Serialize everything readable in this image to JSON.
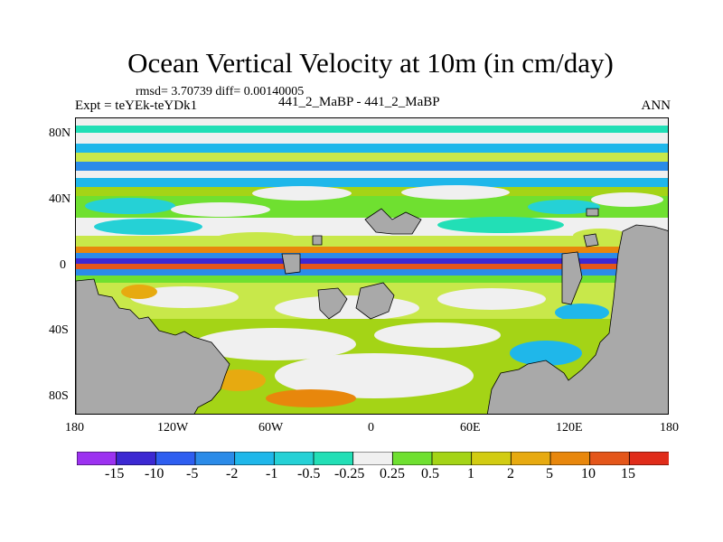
{
  "title": "Ocean Vertical Velocity at 10m (in cm/day)",
  "stats": "rmsd= 3.70739 diff= 0.00140005",
  "experiment": "Expt = teYEk-teYDk1",
  "case_label": "441_2_MaBP - 441_2_MaBP",
  "season": "ANN",
  "y_axis_labels": [
    "80N",
    "40N",
    "0",
    "40S",
    "80S"
  ],
  "x_axis_labels": [
    "180",
    "120W",
    "60W",
    "0",
    "60E",
    "120E",
    "180"
  ],
  "colorbar_labels": [
    "-15",
    "-10",
    "-5",
    "-2",
    "-1",
    "-0.5",
    "-0.25",
    "0.25",
    "0.5",
    "1",
    "2",
    "5",
    "10",
    "15"
  ],
  "colorbar_colors": [
    "#9c32f0",
    "#3c28d2",
    "#2e5ef0",
    "#2b8be8",
    "#1fb7ea",
    "#25d1d6",
    "#22dfb6",
    "#f0f0f0",
    "#6fe030",
    "#a4d416",
    "#d2cc12",
    "#e7aa10",
    "#e8870c",
    "#e4561a",
    "#e02c1a"
  ],
  "land_color": "#a9a9a9"
}
